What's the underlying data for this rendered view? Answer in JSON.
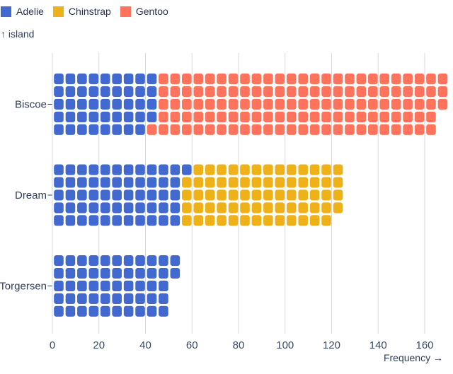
{
  "legend": {
    "items": [
      {
        "label": "Adelie",
        "color": "#4269d0"
      },
      {
        "label": "Chinstrap",
        "color": "#efb118"
      },
      {
        "label": "Gentoo",
        "color": "#ff725c"
      }
    ]
  },
  "y_axis_title": "↑ island",
  "x_axis_title": "Frequency →",
  "chart_data": {
    "type": "waffle",
    "orientation": "horizontal",
    "unit_value": 1,
    "units_per_column": 5,
    "categories": [
      "Biscoe",
      "Dream",
      "Torgersen"
    ],
    "series": [
      {
        "name": "Adelie",
        "color": "#4269d0",
        "values": [
          44,
          56,
          52
        ]
      },
      {
        "name": "Chinstrap",
        "color": "#efb118",
        "values": [
          0,
          68,
          0
        ]
      },
      {
        "name": "Gentoo",
        "color": "#ff725c",
        "values": [
          124,
          0,
          0
        ]
      }
    ],
    "totals": [
      168,
      124,
      52
    ],
    "x_ticks": [
      0,
      20,
      40,
      60,
      80,
      100,
      120,
      140,
      160
    ],
    "xlim": [
      0,
      170
    ],
    "xlabel": "Frequency →",
    "ylabel": "island",
    "grid": true,
    "legend_position": "top-left",
    "colors": {
      "grid": "#d9d9d9",
      "text": "#2e3d56",
      "background": "#ffffff"
    }
  }
}
